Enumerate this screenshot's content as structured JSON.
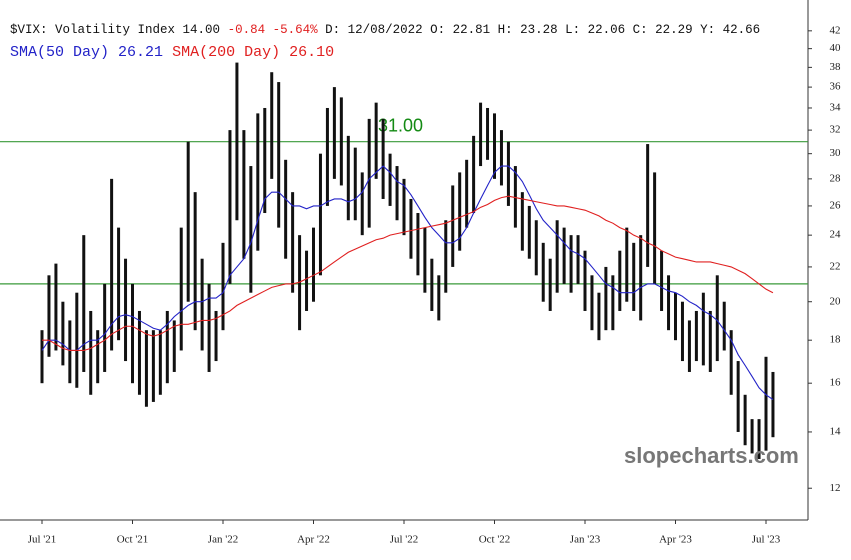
{
  "chart_data": {
    "type": "ohlc",
    "header": {
      "symbol": "$VIX: Volatility Index 14.00",
      "change": "-0.84 -5.64%",
      "details": "D: 12/08/2022 O: 22.81 H: 23.28 L: 22.06 C: 22.29 Y: 42.66"
    },
    "watermark": "slopecharts.com",
    "log_scale": true,
    "bar_color": "#111111",
    "categories": [
      "Jul '21",
      null,
      null,
      null,
      null,
      null,
      null,
      null,
      null,
      null,
      null,
      null,
      null,
      "Oct '21",
      null,
      null,
      null,
      null,
      null,
      null,
      null,
      null,
      null,
      null,
      null,
      null,
      "Jan '22",
      null,
      null,
      null,
      null,
      null,
      null,
      null,
      null,
      null,
      null,
      null,
      null,
      "Apr '22",
      null,
      null,
      null,
      null,
      null,
      null,
      null,
      null,
      null,
      null,
      null,
      null,
      "Jul '22",
      null,
      null,
      null,
      null,
      null,
      null,
      null,
      null,
      null,
      null,
      null,
      null,
      "Oct '22",
      null,
      null,
      null,
      null,
      null,
      null,
      null,
      null,
      null,
      null,
      null,
      null,
      "Jan '23",
      null,
      null,
      null,
      null,
      null,
      null,
      null,
      null,
      null,
      null,
      null,
      null,
      "Apr '23",
      null,
      null,
      null,
      null,
      null,
      null,
      null,
      null,
      null,
      null,
      null,
      null,
      "Jul '23",
      null
    ],
    "low": [
      16.0,
      17.2,
      17.5,
      16.8,
      16.0,
      15.8,
      16.5,
      15.5,
      16.0,
      16.5,
      17.5,
      18.0,
      17.0,
      16.0,
      15.5,
      15.0,
      15.2,
      15.5,
      16.0,
      16.5,
      17.5,
      20.0,
      18.5,
      17.5,
      16.5,
      17.0,
      18.5,
      21.0,
      25.0,
      22.5,
      20.5,
      23.0,
      25.5,
      28.0,
      24.5,
      22.5,
      20.5,
      18.5,
      19.5,
      20.0,
      21.5,
      26.0,
      28.0,
      27.5,
      25.0,
      25.0,
      24.0,
      24.5,
      28.0,
      26.5,
      26.0,
      25.0,
      24.0,
      22.5,
      21.5,
      20.5,
      19.5,
      19.0,
      20.5,
      22.0,
      23.0,
      24.5,
      25.5,
      29.0,
      29.5,
      28.0,
      27.5,
      26.0,
      24.5,
      23.0,
      22.5,
      21.5,
      20.0,
      19.5,
      20.5,
      21.0,
      20.5,
      21.0,
      19.5,
      18.5,
      18.0,
      18.5,
      18.5,
      19.5,
      20.0,
      19.5,
      19.0,
      22.0,
      21.0,
      19.5,
      18.5,
      18.0,
      17.0,
      16.5,
      17.0,
      16.8,
      16.5,
      17.0,
      17.5,
      15.5,
      14.0,
      13.5,
      13.2,
      13.0,
      13.3,
      13.8
    ],
    "high": [
      18.5,
      21.5,
      22.2,
      20.0,
      19.0,
      20.5,
      24.0,
      19.5,
      18.5,
      21.0,
      28.0,
      24.5,
      22.5,
      21.0,
      19.5,
      18.5,
      18.5,
      18.5,
      19.5,
      19.0,
      24.5,
      31.0,
      27.0,
      22.5,
      21.0,
      19.5,
      23.5,
      32.0,
      38.5,
      32.0,
      29.0,
      33.5,
      34.0,
      37.5,
      36.5,
      29.5,
      27.0,
      24.0,
      23.0,
      24.5,
      30.0,
      34.0,
      36.0,
      35.0,
      31.5,
      30.5,
      28.5,
      33.0,
      34.5,
      33.0,
      30.0,
      29.0,
      28.0,
      26.5,
      25.5,
      24.5,
      22.5,
      21.5,
      25.0,
      27.5,
      28.5,
      29.5,
      31.5,
      34.5,
      34.0,
      33.5,
      32.0,
      31.0,
      29.0,
      27.0,
      26.0,
      25.0,
      23.5,
      22.5,
      25.0,
      24.5,
      24.0,
      24.0,
      23.0,
      21.5,
      20.5,
      22.0,
      21.5,
      23.0,
      24.5,
      23.5,
      24.0,
      30.8,
      28.5,
      23.0,
      21.5,
      20.5,
      20.0,
      19.0,
      19.5,
      20.5,
      19.5,
      21.5,
      20.0,
      18.5,
      17.0,
      15.5,
      14.5,
      14.5,
      17.2,
      16.5
    ],
    "series": [
      {
        "name": "SMA(50 Day)",
        "legend_value": "26.21",
        "color": "#2323c8",
        "values": [
          17.5,
          18.0,
          18.0,
          17.8,
          17.5,
          17.5,
          17.8,
          18.0,
          18.0,
          18.3,
          18.8,
          19.2,
          19.3,
          19.2,
          19.0,
          18.8,
          18.6,
          18.5,
          18.8,
          19.2,
          19.5,
          19.8,
          20.0,
          20.0,
          20.2,
          20.2,
          20.5,
          21.5,
          22.0,
          22.5,
          23.5,
          25.0,
          26.5,
          27.0,
          27.0,
          26.5,
          26.0,
          26.0,
          25.8,
          26.0,
          26.0,
          26.3,
          26.5,
          26.5,
          26.3,
          26.5,
          27.0,
          28.0,
          28.5,
          29.0,
          28.5,
          27.8,
          27.5,
          26.8,
          26.0,
          25.2,
          24.5,
          24.0,
          23.5,
          23.5,
          23.8,
          24.5,
          25.5,
          26.5,
          27.5,
          28.5,
          29.0,
          29.0,
          28.5,
          27.8,
          26.8,
          25.8,
          25.0,
          24.5,
          24.0,
          23.5,
          23.0,
          22.8,
          22.5,
          22.0,
          21.5,
          21.0,
          20.8,
          20.5,
          20.5,
          20.5,
          20.8,
          21.0,
          21.0,
          20.8,
          20.6,
          20.5,
          20.3,
          20.0,
          19.8,
          19.5,
          19.3,
          19.0,
          18.5,
          18.0,
          17.3,
          16.8,
          16.3,
          15.8,
          15.5,
          15.3
        ]
      },
      {
        "name": "SMA(200 Day)",
        "legend_value": "26.10",
        "color": "#e02020",
        "values": [
          18.0,
          18.0,
          17.8,
          17.6,
          17.5,
          17.5,
          17.5,
          17.6,
          17.8,
          18.0,
          18.3,
          18.5,
          18.7,
          18.7,
          18.5,
          18.3,
          18.2,
          18.3,
          18.5,
          18.7,
          18.8,
          18.8,
          18.9,
          19.0,
          19.0,
          19.1,
          19.3,
          19.5,
          19.8,
          20.0,
          20.2,
          20.4,
          20.6,
          20.8,
          20.9,
          21.0,
          21.0,
          21.1,
          21.3,
          21.5,
          21.7,
          22.0,
          22.3,
          22.6,
          22.9,
          23.1,
          23.3,
          23.5,
          23.7,
          23.8,
          24.0,
          24.1,
          24.2,
          24.3,
          24.4,
          24.5,
          24.6,
          24.7,
          24.8,
          25.0,
          25.2,
          25.4,
          25.6,
          25.9,
          26.1,
          26.4,
          26.6,
          26.7,
          26.6,
          26.5,
          26.4,
          26.3,
          26.2,
          26.1,
          26.0,
          26.0,
          25.9,
          25.8,
          25.7,
          25.5,
          25.3,
          25.0,
          24.8,
          24.5,
          24.3,
          24.0,
          23.8,
          23.5,
          23.3,
          23.0,
          22.8,
          22.6,
          22.5,
          22.4,
          22.3,
          22.3,
          22.3,
          22.2,
          22.1,
          22.0,
          21.8,
          21.6,
          21.3,
          21.0,
          20.7,
          20.5
        ]
      }
    ],
    "hlines": [
      {
        "value": 31,
        "label": "31.00",
        "color": "#3a9a3a"
      },
      {
        "value": 21,
        "color": "#3a9a3a"
      }
    ],
    "ylim": [
      11,
      45.7
    ],
    "yticks": [
      12,
      14,
      16,
      18,
      20,
      22,
      24,
      26,
      28,
      30,
      32,
      34,
      36,
      38,
      40,
      42
    ]
  }
}
